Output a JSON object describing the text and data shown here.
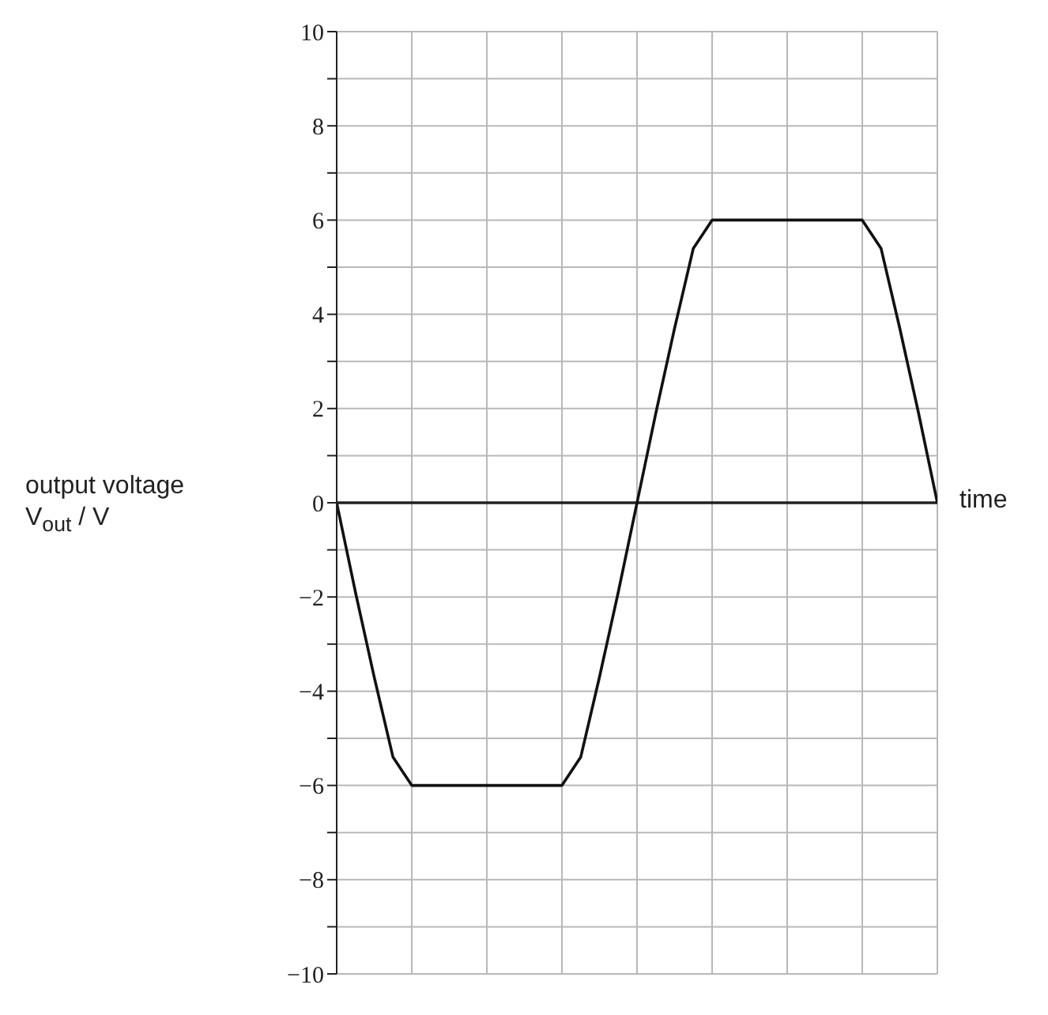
{
  "chart_data": {
    "type": "line",
    "xlabel": "time",
    "ylabel": "output voltage V$_{out}$ / V",
    "categories": [
      null,
      null,
      null,
      null,
      null,
      null,
      null,
      null,
      null,
      null,
      null,
      null,
      null,
      null,
      null,
      null,
      null,
      null,
      null,
      null,
      null,
      null,
      null,
      null,
      null,
      null,
      null,
      null,
      null,
      null,
      null,
      null,
      null
    ],
    "series": [
      {
        "color": "#111111",
        "values": [
          0,
          -1.9,
          -3.7,
          -5.4,
          -6,
          -6,
          -6,
          -6,
          -6,
          -6,
          -6,
          -6,
          -6,
          -5.4,
          -3.7,
          -1.9,
          0,
          1.9,
          3.7,
          5.4,
          6,
          6,
          6,
          6,
          6,
          6,
          6,
          6,
          6,
          5.4,
          3.7,
          1.9,
          0
        ]
      }
    ],
    "ylim": [
      -10,
      10
    ],
    "yticks": [
      {
        "value": -10,
        "label": "−10"
      },
      {
        "value": -9,
        "label": null
      },
      {
        "value": -8,
        "label": "−8"
      },
      {
        "value": -7,
        "label": null
      },
      {
        "value": -6,
        "label": "−6"
      },
      {
        "value": -5,
        "label": null
      },
      {
        "value": -4,
        "label": "−4"
      },
      {
        "value": -3,
        "label": null
      },
      {
        "value": -2,
        "label": "−2"
      },
      {
        "value": -1,
        "label": null
      },
      {
        "value": 0,
        "label": "0"
      },
      {
        "value": 1,
        "label": null
      },
      {
        "value": 2,
        "label": "2"
      },
      {
        "value": 3,
        "label": null
      },
      {
        "value": 4,
        "label": "4"
      },
      {
        "value": 5,
        "label": null
      },
      {
        "value": 6,
        "label": "6"
      },
      {
        "value": 7,
        "label": null
      },
      {
        "value": 8,
        "label": "8"
      },
      {
        "value": 9,
        "label": null
      },
      {
        "value": 10,
        "label": "10"
      }
    ],
    "ref_lines": [
      {
        "axis": "y",
        "value": 0,
        "color": "#222222"
      }
    ],
    "grid": true,
    "tick_labels": "y",
    "marker": "none",
    "line_style": "solid"
  }
}
